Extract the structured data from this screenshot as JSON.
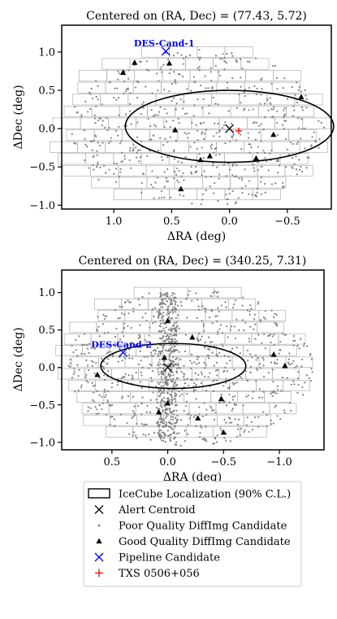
{
  "chart_data": [
    {
      "type": "scatter",
      "title": "Centered on (RA, Dec) = (77.43, 5.72)",
      "xlabel": "ΔRA (deg)",
      "ylabel": "ΔDec (deg)",
      "xlim": [
        1.45,
        -0.88
      ],
      "ylim": [
        -1.05,
        1.35
      ],
      "x_inverted": true,
      "xticks": [
        1.0,
        0.5,
        0.0,
        -0.5
      ],
      "xtick_labels": [
        "1.0",
        "0.5",
        "0.0",
        "−0.5"
      ],
      "yticks": [
        1.0,
        0.5,
        0.0,
        -0.5,
        -1.0
      ],
      "ytick_labels": [
        "1.0",
        "0.5",
        "0.0",
        "−0.5",
        "−1.0"
      ],
      "ellipse_90cl": {
        "center": [
          0.0,
          0.03
        ],
        "half_width_ra": 0.9,
        "half_height_dec": 0.47
      },
      "alert_centroid": [
        0.0,
        0.0
      ],
      "pipeline_candidate": {
        "x": 0.55,
        "y": 1.01,
        "label": "DES-Cand-1"
      },
      "txs_0506_056": [
        -0.08,
        -0.03
      ],
      "good_quality_candidates": [
        [
          0.82,
          0.86
        ],
        [
          0.52,
          0.85
        ],
        [
          0.92,
          0.73
        ],
        [
          -0.62,
          0.41
        ],
        [
          0.47,
          -0.02
        ],
        [
          -0.38,
          -0.08
        ],
        [
          0.17,
          -0.36
        ],
        [
          0.25,
          -0.41
        ],
        [
          -0.23,
          -0.39
        ],
        [
          0.42,
          -0.79
        ]
      ],
      "poor_quality_candidates_count": 600
    },
    {
      "type": "scatter",
      "title": "Centered on (RA, Dec) = (340.25, 7.31)",
      "xlabel": "ΔRA (deg)",
      "ylabel": "ΔDec (deg)",
      "xlim": [
        0.95,
        -1.4
      ],
      "ylim": [
        -1.1,
        1.3
      ],
      "x_inverted": true,
      "xticks": [
        0.5,
        0.0,
        -0.5,
        -1.0
      ],
      "xtick_labels": [
        "0.5",
        "0.0",
        "−0.5",
        "−1.0"
      ],
      "yticks": [
        1.0,
        0.5,
        0.0,
        -0.5,
        -1.0
      ],
      "ytick_labels": [
        "1.0",
        "0.5",
        "0.0",
        "−0.5",
        "−1.0"
      ],
      "ellipse_90cl": {
        "center": [
          -0.05,
          0.02
        ],
        "half_width_ra": 0.65,
        "half_height_dec": 0.3
      },
      "alert_centroid": [
        0.0,
        0.0
      ],
      "pipeline_candidate": {
        "x": 0.4,
        "y": 0.2,
        "label": "DES-Cand-2"
      },
      "good_quality_candidates": [
        [
          0.0,
          0.62
        ],
        [
          -0.22,
          0.4
        ],
        [
          0.03,
          0.13
        ],
        [
          0.63,
          -0.1
        ],
        [
          0.0,
          -0.48
        ],
        [
          0.08,
          -0.6
        ],
        [
          -0.95,
          0.17
        ],
        [
          -1.05,
          0.02
        ],
        [
          -0.48,
          -0.42
        ],
        [
          -0.27,
          -0.68
        ],
        [
          -0.5,
          -0.87
        ]
      ],
      "poor_quality_candidates_count": 1200
    }
  ],
  "legend": {
    "placement": "bottom",
    "items": [
      {
        "label": "IceCube Localization (90% C.L.)",
        "marker": "ellipse-patch",
        "color": "#000000"
      },
      {
        "label": "Alert Centroid",
        "marker": "x",
        "color": "#000000"
      },
      {
        "label": "Poor Quality DiffImg Candidate",
        "marker": "dot",
        "color": "#808080"
      },
      {
        "label": "Good Quality DiffImg Candidate",
        "marker": "triangle",
        "color": "#000000"
      },
      {
        "label": "Pipeline Candidate",
        "marker": "x",
        "color": "#0000ff"
      },
      {
        "label": "TXS 0506+056",
        "marker": "plus",
        "color": "#ff0000"
      }
    ]
  },
  "colors": {
    "poor": "#808080",
    "good": "#000000",
    "pipeline": "#0000ff",
    "txs": "#ff0000",
    "ccd_outline": "#b0b0b0"
  }
}
